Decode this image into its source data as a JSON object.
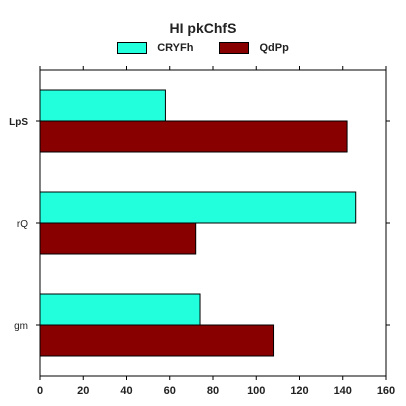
{
  "chart_data": {
    "type": "bar",
    "orientation": "horizontal",
    "title": "HI  pkChfS",
    "categories": [
      "LpS",
      "rQ",
      "gm"
    ],
    "series": [
      {
        "name": "CRYFh",
        "color": "#22ffdd",
        "values": [
          58,
          146,
          74
        ]
      },
      {
        "name": "QdPp",
        "color": "#880000",
        "values": [
          142,
          72,
          108
        ]
      }
    ],
    "xlim": [
      0,
      160
    ],
    "xticks": [
      0,
      20,
      40,
      60,
      80,
      100,
      120,
      140,
      160
    ],
    "category_label_bold": [
      true,
      false,
      false
    ],
    "xlabel": "",
    "ylabel": "",
    "grid": false,
    "legend_position": "top-center"
  }
}
